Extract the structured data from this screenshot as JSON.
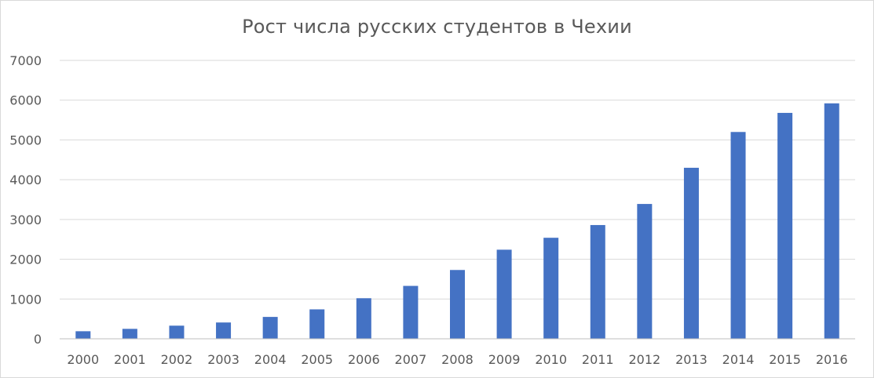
{
  "chart_data": {
    "type": "bar",
    "title": "Рост числа русских студентов в Чехии",
    "xlabel": "",
    "ylabel": "",
    "categories": [
      "2000",
      "2001",
      "2002",
      "2003",
      "2004",
      "2005",
      "2006",
      "2007",
      "2008",
      "2009",
      "2010",
      "2011",
      "2012",
      "2013",
      "2014",
      "2015",
      "2016"
    ],
    "values": [
      190,
      250,
      330,
      410,
      550,
      740,
      1020,
      1330,
      1730,
      2240,
      2540,
      2860,
      3390,
      4300,
      5200,
      5680,
      5920
    ],
    "ylim": [
      0,
      7000
    ],
    "yticks": [
      "0",
      "1000",
      "2000",
      "3000",
      "4000",
      "5000",
      "6000",
      "7000"
    ],
    "grid": true,
    "legend": "none",
    "colors": {
      "bar": "#4472c4",
      "grid": "#d9d9d9",
      "axis": "#bfbfbf",
      "text": "#595959"
    }
  }
}
